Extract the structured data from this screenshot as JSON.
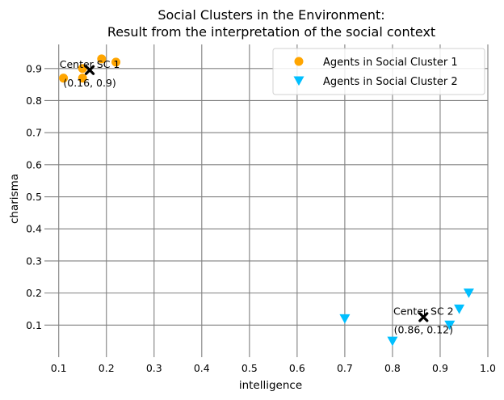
{
  "chart_data": {
    "type": "scatter",
    "title": "Social Clusters in the Environment:\nResult from the interpretation of the social context",
    "xlabel": "intelligence",
    "ylabel": "charisma",
    "xlim": [
      0.07,
      1.0
    ],
    "ylim": [
      0.0,
      0.975
    ],
    "xticks": [
      "0.1",
      "0.2",
      "0.3",
      "0.4",
      "0.5",
      "0.6",
      "0.7",
      "0.8",
      "0.9",
      "1.0"
    ],
    "yticks": [
      "0.1",
      "0.2",
      "0.3",
      "0.4",
      "0.5",
      "0.6",
      "0.7",
      "0.8",
      "0.9"
    ],
    "grid": true,
    "legend_position": "top-right",
    "series": [
      {
        "name": "Agents in Social Cluster 1",
        "marker": "circle",
        "color": "#FFA500",
        "points": [
          [
            0.11,
            0.87
          ],
          [
            0.15,
            0.9
          ],
          [
            0.15,
            0.87
          ],
          [
            0.19,
            0.93
          ],
          [
            0.22,
            0.92
          ]
        ]
      },
      {
        "name": "Agents in Social Cluster 2",
        "marker": "triangle-down",
        "color": "#00BFFF",
        "points": [
          [
            0.7,
            0.12
          ],
          [
            0.8,
            0.05
          ],
          [
            0.92,
            0.1
          ],
          [
            0.94,
            0.15
          ],
          [
            0.96,
            0.2
          ]
        ]
      }
    ],
    "centers": [
      {
        "x": 0.165,
        "y": 0.895,
        "label_line1": "Center SC 1",
        "label_line2": "(0.16, 0.9)",
        "marker": "x",
        "color": "#000000"
      },
      {
        "x": 0.865,
        "y": 0.125,
        "label_line1": "Center SC 2",
        "label_line2": "(0.86, 0.12)",
        "marker": "x",
        "color": "#000000"
      }
    ]
  }
}
